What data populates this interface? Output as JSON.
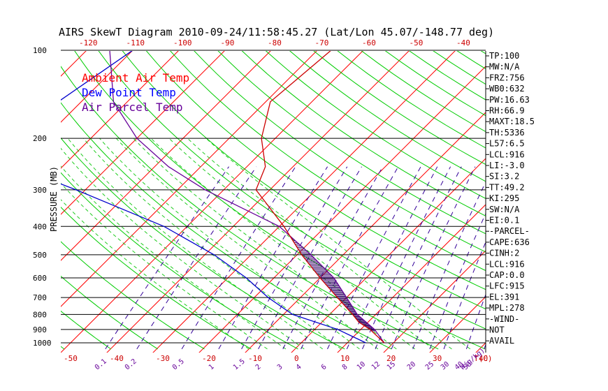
{
  "header": {
    "title": "AIRS SkewT Diagram 2010-09-24/11:58:45.27 (Lat/Lon 45.07/-148.77 deg)"
  },
  "axis_labels": {
    "pressure": "PRESSURE (MB)",
    "temp_unit": "T(C)",
    "mixing_unit": "W(g/kg)"
  },
  "legend": [
    {
      "label": "Ambient Air Temp",
      "color": "#ff0000"
    },
    {
      "label": "Dew Point Temp",
      "color": "#0000ff"
    },
    {
      "label": "Air Parcel Temp",
      "color": "#660099"
    }
  ],
  "stats": [
    "TP:100",
    "MW:N/A",
    "FRZ:756",
    "WB0:632",
    "PW:16.63",
    "RH:66.9",
    "MAXT:18.5",
    "TH:5336",
    "L57:6.5",
    "LCL:916",
    "LI:-3.0",
    "SI:3.2",
    "TT:49.2",
    "KI:295",
    "SW:N/A",
    "EI:0.1",
    "-PARCEL-",
    "CAPE:636",
    "CINH:2",
    "LCL:916",
    "CAP:0.0",
    "LFC:915",
    "EL:391",
    "MPL:278",
    "-WIND-",
    "NOT",
    "AVAIL"
  ],
  "colors": {
    "isotherm": "#ff0000",
    "dry_adiabat": "#00cc00",
    "moist_adiabat": "#22cc22",
    "mixing_ratio": "#330099",
    "temperature": "#cc0000",
    "dewpoint": "#0000cc",
    "parcel": "#660099",
    "axis_text": "#cc0000",
    "mixing_text": "#660099"
  },
  "chart_data": {
    "type": "skew-t",
    "pressure_ticks": [
      100,
      200,
      300,
      400,
      500,
      600,
      700,
      800,
      900,
      1000
    ],
    "bottom_temp_ticks": [
      -50,
      -40,
      -30,
      -20,
      -10,
      0,
      10,
      20,
      30,
      40
    ],
    "top_temp_ticks": [
      -120,
      -110,
      -100,
      -90,
      -80,
      -70,
      -60,
      -50,
      -40
    ],
    "mixing_ratio_ticks": [
      "0.1",
      "0.2",
      "0.5",
      "1",
      "1.5",
      "2",
      "3",
      "4",
      "6",
      "8",
      "10",
      "12",
      "15",
      "20",
      "25",
      "30",
      "40",
      "50"
    ],
    "temperature_profile": [
      {
        "p": 100,
        "t": -57
      },
      {
        "p": 150,
        "t": -59
      },
      {
        "p": 200,
        "t": -53
      },
      {
        "p": 250,
        "t": -46
      },
      {
        "p": 300,
        "t": -43
      },
      {
        "p": 400,
        "t": -29
      },
      {
        "p": 500,
        "t": -19
      },
      {
        "p": 600,
        "t": -10
      },
      {
        "p": 700,
        "t": -2
      },
      {
        "p": 800,
        "t": 5
      },
      {
        "p": 850,
        "t": 8
      },
      {
        "p": 900,
        "t": 12
      },
      {
        "p": 1000,
        "t": 18
      }
    ],
    "dewpoint_profile": [
      {
        "p": 100,
        "t": -100
      },
      {
        "p": 150,
        "t": -105
      },
      {
        "p": 200,
        "t": -107
      },
      {
        "p": 250,
        "t": -100
      },
      {
        "p": 300,
        "t": -82
      },
      {
        "p": 400,
        "t": -55
      },
      {
        "p": 500,
        "t": -38
      },
      {
        "p": 600,
        "t": -26
      },
      {
        "p": 700,
        "t": -17
      },
      {
        "p": 800,
        "t": -8
      },
      {
        "p": 900,
        "t": 5
      },
      {
        "p": 1000,
        "t": 14
      }
    ],
    "parcel_profile": [
      {
        "p": 100,
        "t": -105
      },
      {
        "p": 150,
        "t": -93
      },
      {
        "p": 200,
        "t": -80
      },
      {
        "p": 250,
        "t": -67
      },
      {
        "p": 300,
        "t": -54
      },
      {
        "p": 400,
        "t": -30
      },
      {
        "p": 500,
        "t": -17
      },
      {
        "p": 600,
        "t": -7
      },
      {
        "p": 700,
        "t": 0
      },
      {
        "p": 800,
        "t": 6
      },
      {
        "p": 900,
        "t": 13
      },
      {
        "p": 1000,
        "t": 18
      }
    ]
  }
}
